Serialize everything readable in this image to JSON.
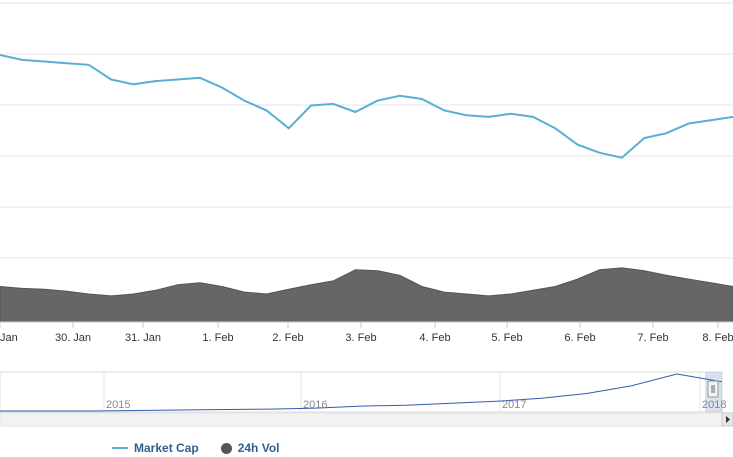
{
  "chart_data": {
    "type": "line",
    "x_ticks": [
      "Jan",
      "30. Jan",
      "31. Jan",
      "1. Feb",
      "2. Feb",
      "3. Feb",
      "4. Feb",
      "5. Feb",
      "6. Feb",
      "7. Feb",
      "8. Feb"
    ],
    "grid": true,
    "legend_position": "bottom-left",
    "series": [
      {
        "name": "Market Cap",
        "color": "#5aaed6",
        "values": [
          100,
          97,
          96,
          95,
          94,
          85,
          82,
          84,
          85,
          86,
          80,
          72,
          66,
          55,
          69,
          70,
          65,
          72,
          75,
          73,
          66,
          63,
          62,
          64,
          62,
          55,
          45,
          40,
          37,
          49,
          52,
          58,
          60,
          62
        ]
      },
      {
        "name": "24h Vol",
        "color": "#666666",
        "values": [
          38,
          36,
          35,
          33,
          30,
          28,
          30,
          34,
          40,
          42,
          38,
          32,
          30,
          35,
          40,
          44,
          56,
          55,
          50,
          38,
          32,
          30,
          28,
          30,
          34,
          38,
          46,
          56,
          58,
          55,
          50,
          46,
          42,
          38
        ]
      }
    ]
  },
  "navigator": {
    "years": [
      "2015",
      "2016",
      "2017",
      "2018"
    ],
    "series": [
      0,
      0,
      0,
      0.5,
      1,
      1.5,
      2,
      3,
      5,
      6,
      8,
      10,
      13,
      18,
      26,
      38,
      30
    ]
  },
  "legend": {
    "market_cap_label": "Market Cap",
    "vol_label": "24h Vol"
  }
}
